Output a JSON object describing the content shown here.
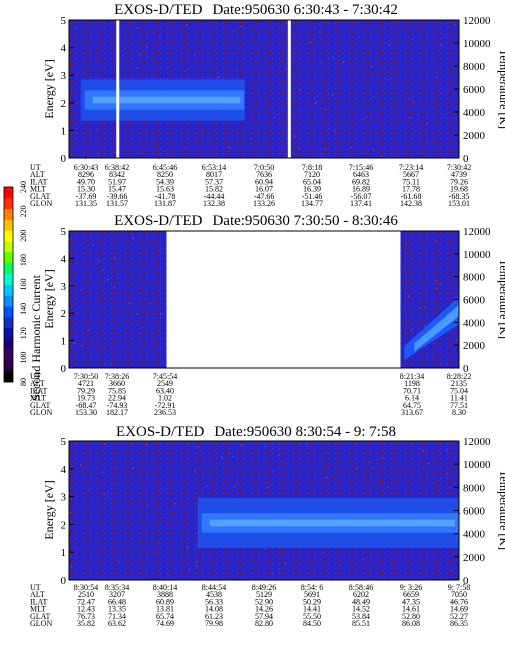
{
  "colorbar": {
    "label": "Second Harmonic Current",
    "ticks": [
      "80",
      "100",
      "120",
      "140",
      "160",
      "180",
      "200",
      "220",
      "240"
    ],
    "colors": [
      "#000000",
      "#2a0040",
      "#3a0060",
      "#200070",
      "#1010a0",
      "#1030c0",
      "#0050ff",
      "#0090ff",
      "#00c8ff",
      "#00ffd0",
      "#00ff60",
      "#60ff00",
      "#c0ff00",
      "#ffff00",
      "#ffc000",
      "#ff8000",
      "#ff3000",
      "#ff0000"
    ]
  },
  "chart_data": [
    {
      "type": "heatmap",
      "title": "EXOS-D/TED",
      "date_label": "Date:950630  6:30:43 - 7:30:42",
      "ylabel": "Energy [eV]",
      "ylabel_right": "Temperature [K]",
      "ylim": [
        0,
        5
      ],
      "ylim_right": [
        0,
        12000
      ],
      "yticks": [
        "0",
        "1",
        "2",
        "3",
        "4",
        "5"
      ],
      "yticks_right": [
        "0",
        "2000",
        "4000",
        "6000",
        "8000",
        "10000",
        "12000"
      ],
      "coverage": [
        [
          0,
          1
        ]
      ],
      "band": {
        "center_ev": 2.1,
        "start": 0.03,
        "end": 0.45,
        "intensity": "high"
      },
      "gaps": [
        0.125,
        0.565
      ],
      "row_labels": [
        "UT",
        "ALT",
        "ILAT",
        "MLT",
        "GLAT",
        "GLON"
      ],
      "columns": [
        [
          "6:30:43",
          "8296",
          "49.70",
          "15.30",
          "-37.69",
          "131.35"
        ],
        [
          "6:38:42",
          "8342",
          "51.97",
          "15.47",
          "-39.66",
          "131.57"
        ],
        [
          "6:45:46",
          "8250",
          "54.39",
          "15.63",
          "-41.78",
          "131.87"
        ],
        [
          "6:53:14",
          "8017",
          "57.37",
          "15.82",
          "-44.44",
          "132.38"
        ],
        [
          "7:0:50",
          "7636",
          "60.94",
          "16.07",
          "-47.66",
          "133.26"
        ],
        [
          "7:8:18",
          "7120",
          "65.04",
          "16.39",
          "-51.46",
          "134.77"
        ],
        [
          "7:15:46",
          "6463",
          "69.82",
          "16.89",
          "-56.07",
          "137.41"
        ],
        [
          "7:23:14",
          "5667",
          "75.11",
          "17.78",
          "-61.68",
          "142.38"
        ],
        [
          "7:30:42",
          "4739",
          "79.26",
          "19.68",
          "-68.35",
          "153.01"
        ]
      ]
    },
    {
      "type": "heatmap",
      "title": "EXOS-D/TED",
      "date_label": "Date:950630  7:30:50 - 8:30:46",
      "ylabel": "Energy [eV]",
      "ylabel_right": "Temperature [K]",
      "ylim": [
        0,
        5
      ],
      "ylim_right": [
        0,
        12000
      ],
      "yticks": [
        "0",
        "1",
        "2",
        "3",
        "4",
        "5"
      ],
      "yticks_right": [
        "0",
        "2000",
        "4000",
        "6000",
        "8000",
        "10000",
        "12000"
      ],
      "coverage": [
        [
          0,
          0.25
        ],
        [
          0.85,
          1
        ]
      ],
      "band": {
        "center_ev": 1.5,
        "start": 0.86,
        "end": 1.0,
        "intensity": "rising"
      },
      "gaps": [],
      "row_labels": [
        "UT",
        "ALT",
        "ILAT",
        "MLT",
        "GLAT",
        "GLON"
      ],
      "columns": [
        [
          "7:30:50",
          "4721",
          "79.29",
          "19.73",
          "-68.47",
          "153.30"
        ],
        [
          "7:38:26",
          "3660",
          "75.85",
          "22.94",
          "-74.93",
          "182.17"
        ],
        [
          "7:45:54",
          "2549",
          "63.40",
          "1.02",
          "-72.91",
          "236.53"
        ],
        [
          "8:21:34",
          "1198",
          "70.71",
          "6.14",
          "64.75",
          "313.67"
        ],
        [
          "8:28:22",
          "2135",
          "75.04",
          "11.41",
          "77.51",
          "8.30"
        ]
      ]
    },
    {
      "type": "heatmap",
      "title": "EXOS-D/TED",
      "date_label": "Date:950630  8:30:54 - 9: 7:58",
      "ylabel": "Energy [eV]",
      "ylabel_right": "Temperature [K]",
      "ylim": [
        0,
        5
      ],
      "ylim_right": [
        0,
        12000
      ],
      "yticks": [
        "0",
        "1",
        "2",
        "3",
        "4",
        "5"
      ],
      "yticks_right": [
        "0",
        "2000",
        "4000",
        "6000",
        "8000",
        "10000",
        "12000"
      ],
      "coverage": [
        [
          0,
          1
        ]
      ],
      "band": {
        "center_ev": 2.05,
        "start": 0.33,
        "end": 1.0,
        "intensity": "high"
      },
      "gaps": [],
      "row_labels": [
        "UT",
        "ALT",
        "ILAT",
        "MLT",
        "GLAT",
        "GLON"
      ],
      "columns": [
        [
          "8:30:54",
          "2510",
          "72.47",
          "12.43",
          "76.73",
          "35.82"
        ],
        [
          "8:35:34",
          "3207",
          "66.48",
          "13.35",
          "71.34",
          "63.62"
        ],
        [
          "8:40:14",
          "3888",
          "60.89",
          "13.81",
          "65.74",
          "74.69"
        ],
        [
          "8:44:54",
          "4538",
          "56.33",
          "14.08",
          "61.23",
          "79.98"
        ],
        [
          "8:49:26",
          "5129",
          "52.90",
          "14.26",
          "57.94",
          "82.80"
        ],
        [
          "8:54: 6",
          "5691",
          "50.29",
          "14.41",
          "55.50",
          "84.50"
        ],
        [
          "8:58:46",
          "6202",
          "48.49",
          "14.52",
          "53.84",
          "85.51"
        ],
        [
          "9: 3:26",
          "6659",
          "47.35",
          "14.61",
          "52.80",
          "86.08"
        ],
        [
          "9: 7:58",
          "7050",
          "46.76",
          "14.69",
          "52.27",
          "86.35"
        ]
      ]
    }
  ]
}
